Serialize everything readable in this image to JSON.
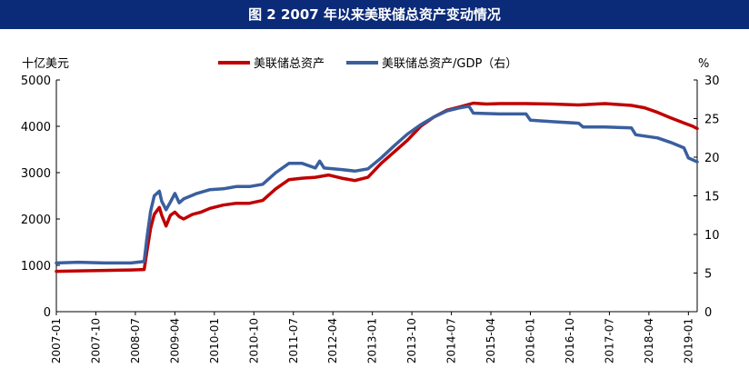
{
  "chart_data": {
    "type": "line",
    "title": "图 2 2007 年以来美联储总资产变动情况",
    "left_unit": "十亿美元",
    "right_unit": "%",
    "y_left": {
      "min": 0,
      "max": 5000,
      "ticks": [
        0,
        1000,
        2000,
        3000,
        4000,
        5000
      ]
    },
    "y_right": {
      "min": 0,
      "max": 30,
      "ticks": [
        0,
        5,
        10,
        15,
        20,
        25,
        30
      ]
    },
    "x_range": [
      "2007-01",
      "2019-03"
    ],
    "x_ticks": [
      "2007-01",
      "2007-10",
      "2008-07",
      "2009-04",
      "2010-01",
      "2010-10",
      "2011-07",
      "2012-04",
      "2013-01",
      "2013-10",
      "2014-07",
      "2015-04",
      "2016-01",
      "2016-10",
      "2017-07",
      "2018-04",
      "2019-01"
    ],
    "grid": false,
    "legend_position": "top-center",
    "series": [
      {
        "name": "美联储总资产",
        "axis": "left",
        "color": "#c00000",
        "points": [
          [
            "2007-01",
            870
          ],
          [
            "2007-06",
            880
          ],
          [
            "2007-12",
            890
          ],
          [
            "2008-06",
            900
          ],
          [
            "2008-09-01",
            910
          ],
          [
            "2008-09-20",
            1300
          ],
          [
            "2008-10-15",
            1800
          ],
          [
            "2008-11-10",
            2100
          ],
          [
            "2008-12-15",
            2250
          ],
          [
            "2009-01",
            2080
          ],
          [
            "2009-02",
            1850
          ],
          [
            "2009-03",
            2080
          ],
          [
            "2009-04",
            2150
          ],
          [
            "2009-05",
            2050
          ],
          [
            "2009-06",
            2000
          ],
          [
            "2009-08",
            2100
          ],
          [
            "2009-10",
            2150
          ],
          [
            "2009-12",
            2230
          ],
          [
            "2010-03",
            2300
          ],
          [
            "2010-06",
            2340
          ],
          [
            "2010-09",
            2340
          ],
          [
            "2010-12",
            2400
          ],
          [
            "2011-03",
            2650
          ],
          [
            "2011-06",
            2850
          ],
          [
            "2011-09",
            2880
          ],
          [
            "2011-12",
            2900
          ],
          [
            "2012-03",
            2950
          ],
          [
            "2012-06",
            2880
          ],
          [
            "2012-09",
            2830
          ],
          [
            "2012-12",
            2900
          ],
          [
            "2013-03",
            3200
          ],
          [
            "2013-06",
            3450
          ],
          [
            "2013-09",
            3700
          ],
          [
            "2013-12",
            4000
          ],
          [
            "2014-03",
            4200
          ],
          [
            "2014-06",
            4350
          ],
          [
            "2014-09",
            4420
          ],
          [
            "2014-12",
            4500
          ],
          [
            "2015-03",
            4480
          ],
          [
            "2015-06",
            4490
          ],
          [
            "2015-12",
            4490
          ],
          [
            "2016-06",
            4480
          ],
          [
            "2016-12",
            4460
          ],
          [
            "2017-06",
            4490
          ],
          [
            "2017-12",
            4450
          ],
          [
            "2018-03",
            4400
          ],
          [
            "2018-06",
            4300
          ],
          [
            "2018-09",
            4180
          ],
          [
            "2018-12",
            4070
          ],
          [
            "2019-02",
            4000
          ],
          [
            "2019-03",
            3950
          ]
        ]
      },
      {
        "name": "美联储总资产/GDP（右）",
        "axis": "right",
        "color": "#3a5f9e",
        "points": [
          [
            "2007-01",
            6.3
          ],
          [
            "2007-06",
            6.4
          ],
          [
            "2007-12",
            6.3
          ],
          [
            "2008-06",
            6.3
          ],
          [
            "2008-09-01",
            6.5
          ],
          [
            "2008-09-20",
            9.5
          ],
          [
            "2008-10-15",
            13.0
          ],
          [
            "2008-11-10",
            15.0
          ],
          [
            "2008-12-15",
            15.6
          ],
          [
            "2009-01",
            14.3
          ],
          [
            "2009-02",
            13.2
          ],
          [
            "2009-03",
            14.2
          ],
          [
            "2009-04",
            15.3
          ],
          [
            "2009-05",
            14.1
          ],
          [
            "2009-06",
            14.6
          ],
          [
            "2009-09",
            15.3
          ],
          [
            "2009-12",
            15.8
          ],
          [
            "2010-03",
            15.9
          ],
          [
            "2010-06",
            16.2
          ],
          [
            "2010-09",
            16.2
          ],
          [
            "2010-12",
            16.5
          ],
          [
            "2011-03",
            18.0
          ],
          [
            "2011-06",
            19.2
          ],
          [
            "2011-09",
            19.2
          ],
          [
            "2011-12",
            18.6
          ],
          [
            "2012-01",
            19.5
          ],
          [
            "2012-02",
            18.6
          ],
          [
            "2012-06",
            18.4
          ],
          [
            "2012-09",
            18.2
          ],
          [
            "2012-12",
            18.5
          ],
          [
            "2013-03",
            19.9
          ],
          [
            "2013-06",
            21.5
          ],
          [
            "2013-09",
            23.0
          ],
          [
            "2013-12",
            24.2
          ],
          [
            "2014-03",
            25.2
          ],
          [
            "2014-06",
            26.0
          ],
          [
            "2014-09",
            26.4
          ],
          [
            "2014-11",
            26.6
          ],
          [
            "2014-12",
            25.7
          ],
          [
            "2015-06",
            25.6
          ],
          [
            "2015-12",
            25.6
          ],
          [
            "2016-01",
            24.8
          ],
          [
            "2016-06",
            24.6
          ],
          [
            "2016-12",
            24.4
          ],
          [
            "2017-01",
            23.9
          ],
          [
            "2017-06",
            23.9
          ],
          [
            "2017-12",
            23.8
          ],
          [
            "2018-01",
            22.9
          ],
          [
            "2018-06",
            22.5
          ],
          [
            "2018-09",
            21.9
          ],
          [
            "2018-12",
            21.2
          ],
          [
            "2019-01",
            19.9
          ],
          [
            "2019-03",
            19.4
          ]
        ]
      }
    ]
  }
}
